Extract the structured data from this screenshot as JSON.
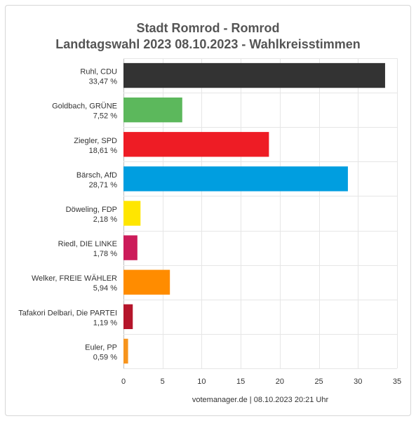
{
  "chart_data": {
    "type": "bar",
    "orientation": "horizontal",
    "title_line1": "Stadt Romrod - Romrod",
    "title_line2": "Landtagswahl 2023 08.10.2023  - Wahlkreisstimmen",
    "categories": [
      {
        "name": "Ruhl, CDU",
        "label": "33,47 %"
      },
      {
        "name": "Goldbach, GRÜNE",
        "label": "7,52 %"
      },
      {
        "name": "Ziegler, SPD",
        "label": "18,61 %"
      },
      {
        "name": "Bärsch, AfD",
        "label": "28,71 %"
      },
      {
        "name": "Döweling, FDP",
        "label": "2,18 %"
      },
      {
        "name": "Riedl, DIE LINKE",
        "label": "1,78 %"
      },
      {
        "name": "Welker, FREIE WÄHLER",
        "label": "5,94 %"
      },
      {
        "name": "Tafakori Delbari, Die PARTEI",
        "label": "1,19 %"
      },
      {
        "name": "Euler, PP",
        "label": "0,59 %"
      }
    ],
    "values": [
      33.47,
      7.52,
      18.61,
      28.71,
      2.18,
      1.78,
      5.94,
      1.19,
      0.59
    ],
    "colors": [
      "#333333",
      "#5cb85c",
      "#ee1c25",
      "#009ee0",
      "#ffe600",
      "#cc1c5a",
      "#ff8c00",
      "#b5152b",
      "#f7941d"
    ],
    "xlim": [
      0,
      35
    ],
    "xticks": [
      "0",
      "5",
      "10",
      "15",
      "20",
      "25",
      "30",
      "35"
    ],
    "xtick_values": [
      0,
      5,
      10,
      15,
      20,
      25,
      30,
      35
    ],
    "grid": true,
    "legend": "none"
  },
  "footer": {
    "credit": "votemanager.de | 08.10.2023 20:21 Uhr"
  }
}
